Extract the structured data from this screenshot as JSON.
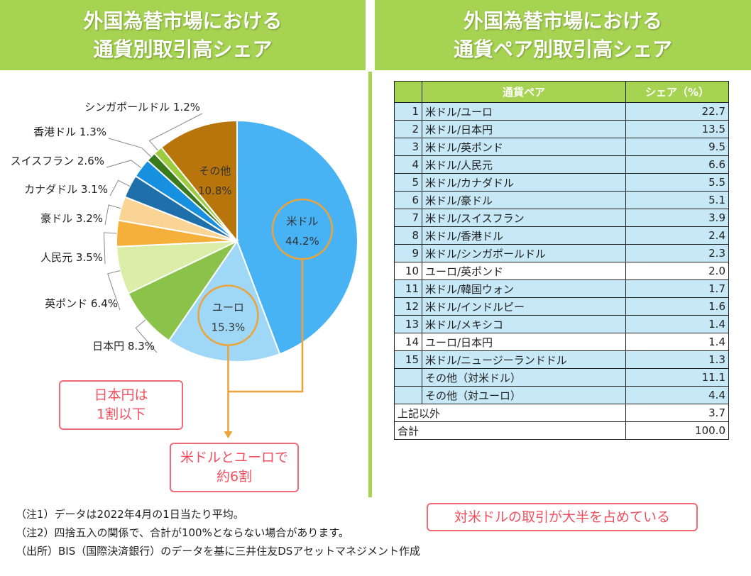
{
  "left_title": {
    "line1": "外国為替市場における",
    "line2": "通貨別取引高シェア"
  },
  "right_title": {
    "line1": "外国為替市場における",
    "line2": "通貨ペア別取引高シェア"
  },
  "chart_data": {
    "type": "pie",
    "title": "外国為替市場における 通貨別取引高シェア",
    "unit": "%",
    "slices": [
      {
        "label": "米ドル",
        "value": 44.2,
        "text": "44.2%",
        "color": "#47b3f5"
      },
      {
        "label": "ユーロ",
        "value": 15.3,
        "text": "15.3%",
        "color": "#9fd7f7"
      },
      {
        "label": "日本円",
        "value": 8.3,
        "text": "日本円 8.3%",
        "color": "#8bc34a"
      },
      {
        "label": "英ポンド",
        "value": 6.4,
        "text": "英ポンド 6.4%",
        "color": "#dbeea8"
      },
      {
        "label": "人民元",
        "value": 3.5,
        "text": "人民元 3.5%",
        "color": "#f5b03c"
      },
      {
        "label": "豪ドル",
        "value": 3.2,
        "text": "豪ドル 3.2%",
        "color": "#f9d494"
      },
      {
        "label": "カナダドル",
        "value": 3.1,
        "text": "カナダドル 3.1%",
        "color": "#1f6fab"
      },
      {
        "label": "スイスフラン",
        "value": 2.6,
        "text": "スイスフラン 2.6%",
        "color": "#1890e0"
      },
      {
        "label": "香港ドル",
        "value": 1.3,
        "text": "香港ドル 1.3%",
        "color": "#3a7a1c"
      },
      {
        "label": "シンガポールドル",
        "value": 1.2,
        "text": "シンガポールドル 1.2%",
        "color": "#9ccc3e"
      },
      {
        "label": "その他",
        "value": 10.8,
        "text": "10.8%",
        "color": "#b8750c"
      }
    ]
  },
  "callouts": {
    "jpy_line1": "日本円は",
    "jpy_line2": "1割以下",
    "usdeur_line1": "米ドルとユーロで",
    "usdeur_line2": "約6割",
    "table_note": "対米ドルの取引が大半を占めている"
  },
  "table": {
    "headers": [
      "通貨ペア",
      "シェア（%）"
    ],
    "rows": [
      {
        "rank": "1",
        "pair": "米ドル/ユーロ",
        "value": "22.7"
      },
      {
        "rank": "2",
        "pair": "米ドル/日本円",
        "value": "13.5"
      },
      {
        "rank": "3",
        "pair": "米ドル/英ポンド",
        "value": "9.5"
      },
      {
        "rank": "4",
        "pair": "米ドル/人民元",
        "value": "6.6"
      },
      {
        "rank": "5",
        "pair": "米ドル/カナダドル",
        "value": "5.5"
      },
      {
        "rank": "6",
        "pair": "米ドル/豪ドル",
        "value": "5.1"
      },
      {
        "rank": "7",
        "pair": "米ドル/スイスフラン",
        "value": "3.9"
      },
      {
        "rank": "8",
        "pair": "米ドル/香港ドル",
        "value": "2.4"
      },
      {
        "rank": "9",
        "pair": "米ドル/シンガポールドル",
        "value": "2.3"
      },
      {
        "rank": "10",
        "pair": "ユーロ/英ポンド",
        "value": "2.0"
      },
      {
        "rank": "11",
        "pair": "米ドル/韓国ウォン",
        "value": "1.7"
      },
      {
        "rank": "12",
        "pair": "米ドル/インドルピー",
        "value": "1.6"
      },
      {
        "rank": "13",
        "pair": "米ドル/メキシコ",
        "value": "1.4"
      },
      {
        "rank": "14",
        "pair": "ユーロ/日本円",
        "value": "1.4"
      },
      {
        "rank": "15",
        "pair": "米ドル/ニュージーランドドル",
        "value": "1.3"
      },
      {
        "rank": "",
        "pair": "その他（対米ドル）",
        "value": "11.1"
      },
      {
        "rank": "",
        "pair": "その他（対ユーロ）",
        "value": "4.4"
      }
    ],
    "other_row": {
      "label": "上記以外",
      "value": "3.7"
    },
    "total_row": {
      "label": "合計",
      "value": "100.0"
    }
  },
  "notes": {
    "note1": "（注1）データは2022年4月の1日当たり平均。",
    "note2": "（注2）四捨五入の関係で、合計が100%とならない場合があります。",
    "source": "（出所）BIS（国際決済銀行）のデータを基に三井住友DSアセットマネジメント作成"
  }
}
